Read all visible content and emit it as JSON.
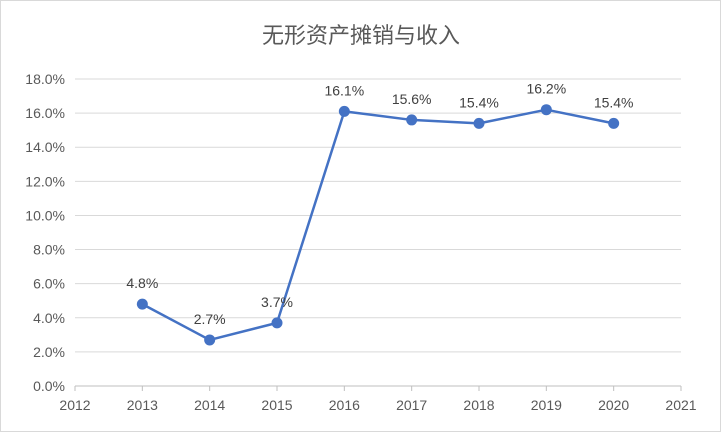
{
  "chart_data": {
    "type": "line",
    "title": "无形资产摊销与收入",
    "xlabel": "",
    "ylabel": "",
    "x": [
      2012,
      2013,
      2014,
      2015,
      2016,
      2017,
      2018,
      2019,
      2020,
      2021
    ],
    "xlim": [
      2012,
      2021
    ],
    "ylim": [
      0,
      18
    ],
    "y_tick_step": 2,
    "y_tick_format": "percent_1dp",
    "grid": true,
    "legend": "none",
    "series": [
      {
        "color": "#4472c4",
        "points": [
          {
            "x": 2013,
            "y": 4.8,
            "label": "4.8%"
          },
          {
            "x": 2014,
            "y": 2.7,
            "label": "2.7%"
          },
          {
            "x": 2015,
            "y": 3.7,
            "label": "3.7%"
          },
          {
            "x": 2016,
            "y": 16.1,
            "label": "16.1%"
          },
          {
            "x": 2017,
            "y": 15.6,
            "label": "15.6%"
          },
          {
            "x": 2018,
            "y": 15.4,
            "label": "15.4%"
          },
          {
            "x": 2019,
            "y": 16.2,
            "label": "16.2%"
          },
          {
            "x": 2020,
            "y": 15.4,
            "label": "15.4%"
          }
        ]
      }
    ]
  }
}
